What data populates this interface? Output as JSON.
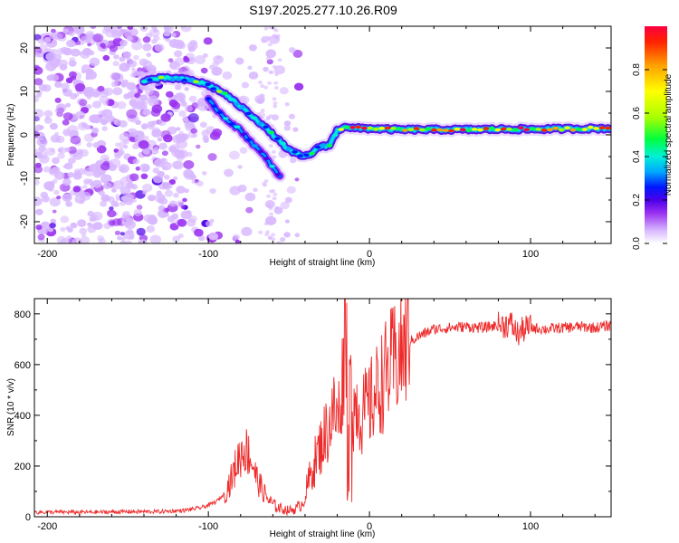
{
  "title": "S197.2025.277.10.26.R09",
  "colors": {
    "snr_line": "#ee2a2a",
    "spectro_cmap": [
      "#ffffff",
      "#d8b8ff",
      "#9a30f0",
      "#4a00e8",
      "#0018ff",
      "#00a8ff",
      "#00f0d8",
      "#00ff40",
      "#a8ff00",
      "#ffff00",
      "#ffa000",
      "#ff2000",
      "#ff0040"
    ]
  },
  "chart_data": [
    {
      "type": "heatmap",
      "title": "S197.2025.277.10.26.R09",
      "xlabel": "Height of straight line (km)",
      "ylabel": "Frequency (Hz)",
      "xlim": [
        -208,
        150
      ],
      "ylim": [
        -25,
        25
      ],
      "xticks": [
        -200,
        -100,
        0,
        100
      ],
      "yticks": [
        20,
        10,
        0,
        -10,
        -20
      ],
      "colorbar": {
        "label": "Normalized spectral amplitude",
        "range": [
          0,
          1
        ],
        "ticks": [
          0.0,
          0.2,
          0.4,
          0.6,
          0.8
        ]
      },
      "ridge": {
        "description": "tone frequency vs height",
        "x": [
          -140,
          -130,
          -120,
          -110,
          -100,
          -90,
          -80,
          -70,
          -60,
          -50,
          -45,
          -40,
          -35,
          -30,
          -25,
          -20,
          -15,
          -10,
          -5,
          0,
          10,
          20,
          40,
          60,
          80,
          100,
          120,
          150
        ],
        "y": [
          12.5,
          13,
          13,
          12.5,
          11.5,
          9.5,
          6.5,
          3.5,
          0,
          -3.5,
          -4.5,
          -5,
          -4,
          -2.5,
          -2.5,
          1,
          2,
          1.5,
          1.5,
          1.5,
          1.3,
          1.2,
          1.2,
          1.2,
          1.3,
          1.3,
          1.4,
          1.5
        ]
      },
      "secondary_ridge": {
        "x": [
          -100,
          -90,
          -80,
          -70,
          -65,
          -60,
          -55
        ],
        "y": [
          8,
          4,
          1,
          -3,
          -5,
          -7.5,
          -10
        ]
      }
    },
    {
      "type": "line",
      "xlabel": "Height of straight line (km)",
      "ylabel": "SNR (10 * v/v)",
      "xlim": [
        -208,
        150
      ],
      "ylim": [
        0,
        860
      ],
      "xticks": [
        -200,
        -100,
        0,
        100
      ],
      "yticks": [
        0,
        200,
        400,
        600,
        800
      ],
      "series": [
        {
          "name": "SNR",
          "x": [
            -208,
            -190,
            -170,
            -150,
            -130,
            -115,
            -105,
            -100,
            -95,
            -90,
            -85,
            -82,
            -78,
            -75,
            -72,
            -70,
            -66,
            -62,
            -58,
            -54,
            -50,
            -46,
            -42,
            -40,
            -38,
            -35,
            -32,
            -28,
            -25,
            -22,
            -20,
            -18,
            -16,
            -15,
            -14,
            -12,
            -10,
            -8,
            -5,
            0,
            5,
            10,
            15,
            20,
            25,
            30,
            40,
            50,
            60,
            70,
            80,
            88,
            92,
            96,
            100,
            110,
            120,
            130,
            140,
            150
          ],
          "y": [
            18,
            18,
            18,
            20,
            20,
            25,
            35,
            45,
            60,
            90,
            160,
            220,
            270,
            250,
            200,
            150,
            100,
            60,
            40,
            30,
            25,
            30,
            50,
            80,
            130,
            200,
            250,
            320,
            360,
            420,
            380,
            450,
            600,
            850,
            650,
            500,
            420,
            450,
            400,
            440,
            500,
            560,
            610,
            650,
            690,
            710,
            740,
            745,
            750,
            745,
            755,
            760,
            720,
            740,
            745,
            740,
            745,
            750,
            745,
            755
          ]
        }
      ]
    }
  ]
}
